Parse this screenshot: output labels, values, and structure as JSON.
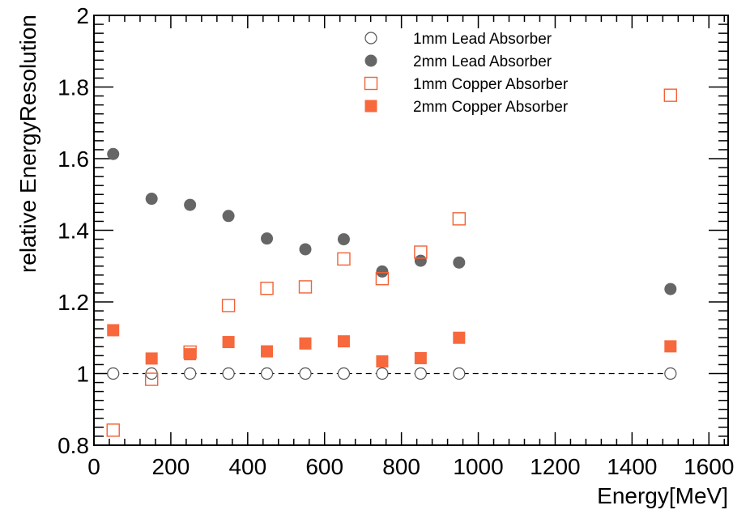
{
  "chart_data": {
    "type": "scatter",
    "xlabel": "Energy[MeV]",
    "ylabel": "relative EnergyResolution",
    "xlim": [
      0,
      1650
    ],
    "ylim": [
      0.8,
      2.0
    ],
    "x_ticks": [
      0,
      200,
      400,
      600,
      800,
      1000,
      1200,
      1400,
      1600
    ],
    "x_tick_labels": [
      "0",
      "200",
      "400",
      "600",
      "800",
      "1000",
      "1200",
      "1400",
      "1600"
    ],
    "y_ticks": [
      0.8,
      1.0,
      1.2,
      1.4,
      1.6,
      1.8,
      2.0
    ],
    "y_tick_labels": [
      "0.8",
      "1",
      "1.2",
      "1.4",
      "1.6",
      "1.8",
      "2"
    ],
    "reference_line": {
      "y": 1.0,
      "style": "dashed"
    },
    "legend_position": "top-right",
    "series": [
      {
        "name": "1mm Lead Absorber",
        "marker": "circle-open",
        "color": "#555555",
        "x": [
          50,
          150,
          250,
          350,
          450,
          550,
          650,
          750,
          850,
          950,
          1500
        ],
        "y": [
          1.0,
          1.0,
          1.0,
          1.0,
          1.0,
          1.0,
          1.0,
          1.0,
          1.0,
          1.0,
          1.0
        ]
      },
      {
        "name": "2mm Lead Absorber",
        "marker": "circle-filled",
        "color": "#666666",
        "x": [
          50,
          150,
          250,
          350,
          450,
          550,
          650,
          750,
          850,
          950,
          1500
        ],
        "y": [
          1.613,
          1.488,
          1.471,
          1.44,
          1.377,
          1.347,
          1.375,
          1.285,
          1.315,
          1.31,
          1.236
        ]
      },
      {
        "name": "1mm Copper Absorber",
        "marker": "square-open",
        "color": "#f26135",
        "x": [
          50,
          150,
          250,
          350,
          450,
          550,
          650,
          750,
          850,
          950,
          1500
        ],
        "y": [
          0.842,
          0.984,
          1.06,
          1.19,
          1.238,
          1.242,
          1.32,
          1.265,
          1.339,
          1.432,
          1.777
        ]
      },
      {
        "name": "2mm Copper Absorber",
        "marker": "square-filled",
        "color": "#f7683c",
        "x": [
          50,
          150,
          250,
          350,
          450,
          550,
          650,
          750,
          850,
          950,
          1500
        ],
        "y": [
          1.121,
          1.042,
          1.054,
          1.088,
          1.062,
          1.084,
          1.09,
          1.034,
          1.043,
          1.1,
          1.076
        ]
      }
    ]
  }
}
